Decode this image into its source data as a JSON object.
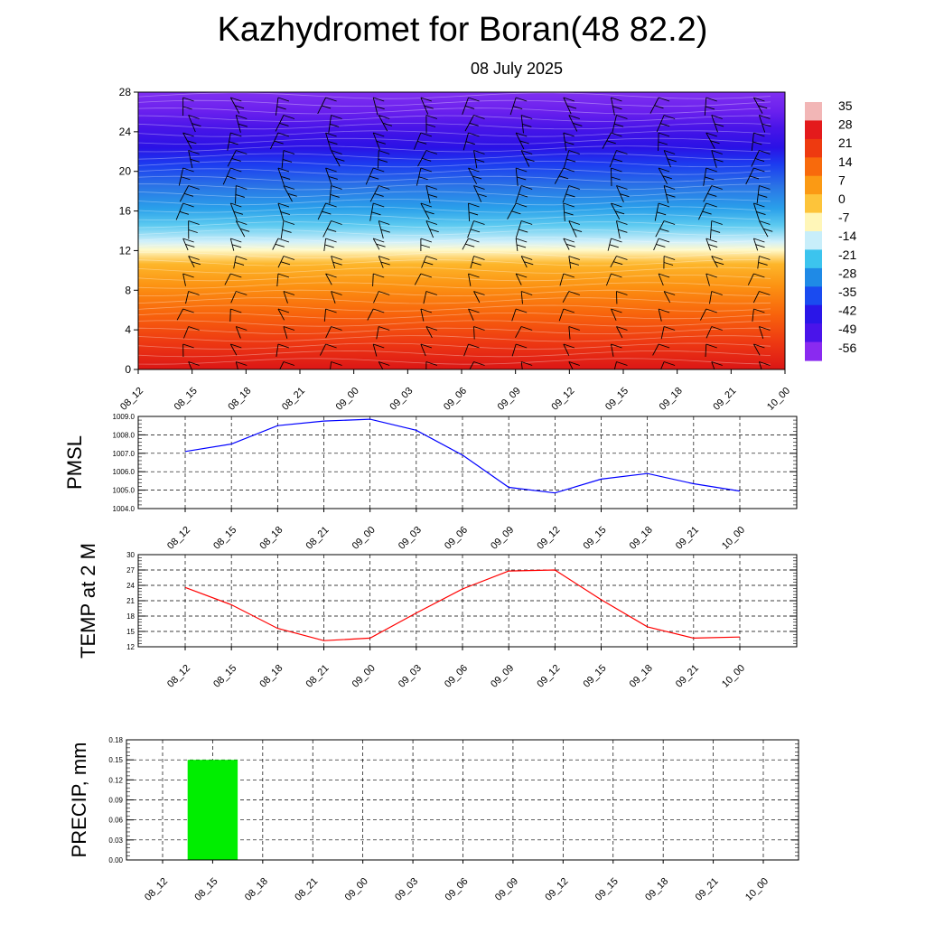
{
  "title": "Kazhydromet for Boran(48 82.2)",
  "subtitle": "08 July 2025",
  "time_labels": [
    "08_12",
    "08_15",
    "08_18",
    "08_21",
    "09_00",
    "09_03",
    "09_06",
    "09_09",
    "09_12",
    "09_15",
    "09_18",
    "09_21",
    "10_00"
  ],
  "chart_data": [
    {
      "type": "heatmap",
      "ylim": [
        0,
        28
      ],
      "y_ticks": [
        "0",
        "4",
        "8",
        "12",
        "16",
        "20",
        "24",
        "28"
      ],
      "colorbar": {
        "labels": [
          "35",
          "28",
          "21",
          "14",
          "7",
          "0",
          "-7",
          "-14",
          "-21",
          "-28",
          "-35",
          "-42",
          "-49",
          "-56"
        ],
        "colors": [
          "#f2b6b6",
          "#e41a1c",
          "#ee3a10",
          "#f86a0c",
          "#fb9a14",
          "#fdc43a",
          "#fff6b8",
          "#c8eefa",
          "#3cc4ee",
          "#1f8ae6",
          "#1a4bf0",
          "#2a16e8",
          "#4a14ea",
          "#8a2af0"
        ]
      }
    },
    {
      "type": "line",
      "ylabel": "PMSL",
      "ylim": [
        1004.0,
        1009.0
      ],
      "y_ticks": [
        "1004.0",
        "1005.0",
        "1006.0",
        "1007.0",
        "1008.0",
        "1009.0"
      ],
      "color": "#0000ff",
      "values": [
        1007.1,
        1007.5,
        1008.5,
        1008.75,
        1008.85,
        1008.25,
        1006.9,
        1005.15,
        1004.85,
        1005.6,
        1005.9,
        1005.35,
        1004.95
      ]
    },
    {
      "type": "line",
      "ylabel": "TEMP at 2 M",
      "ylim": [
        12,
        30
      ],
      "y_ticks": [
        "12",
        "15",
        "18",
        "21",
        "24",
        "27",
        "30"
      ],
      "color": "#ff0000",
      "values": [
        23.6,
        20.2,
        15.6,
        13.2,
        13.7,
        18.6,
        23.3,
        26.8,
        27.0,
        21.2,
        15.9,
        13.7,
        13.9
      ]
    },
    {
      "type": "bar",
      "ylabel": "PRECIP, mm",
      "ylim": [
        0,
        0.18
      ],
      "y_ticks": [
        "0.00",
        "0.03",
        "0.06",
        "0.09",
        "0.12",
        "0.15",
        "0.18"
      ],
      "color": "#00ee00",
      "values": [
        0,
        0.15,
        0,
        0,
        0,
        0,
        0,
        0,
        0,
        0,
        0,
        0,
        0
      ]
    }
  ]
}
